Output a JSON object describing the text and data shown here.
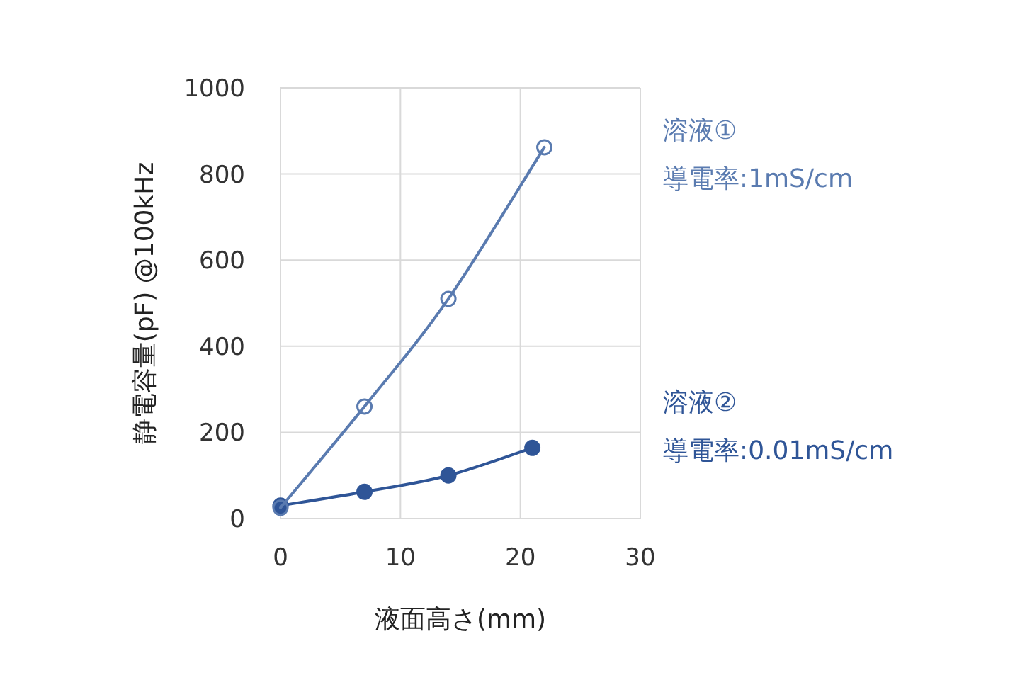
{
  "chart_data": {
    "type": "line",
    "xlabel": "液面高さ(mm)",
    "ylabel": "静電容量(pF) @100kHz",
    "series": [
      {
        "name": "溶液①",
        "color": "#5a7bb0",
        "x": [
          0,
          7,
          14,
          22
        ],
        "values": [
          25,
          260,
          510,
          862
        ]
      },
      {
        "name": "溶液②",
        "color": "#2f5597",
        "x": [
          0,
          7,
          14,
          21
        ],
        "values": [
          30,
          62,
          100,
          164
        ]
      }
    ],
    "annotations": [
      "導電率:1mS/cm",
      "導電率:0.01mS/cm"
    ],
    "xlim": [
      0,
      30
    ],
    "xticks": [
      0,
      10,
      20,
      30
    ],
    "ylim": [
      0,
      1000
    ],
    "yticks": [
      0,
      200,
      400,
      600,
      800,
      1000
    ],
    "grid": true,
    "marker": "circle",
    "line_style": "solid"
  }
}
